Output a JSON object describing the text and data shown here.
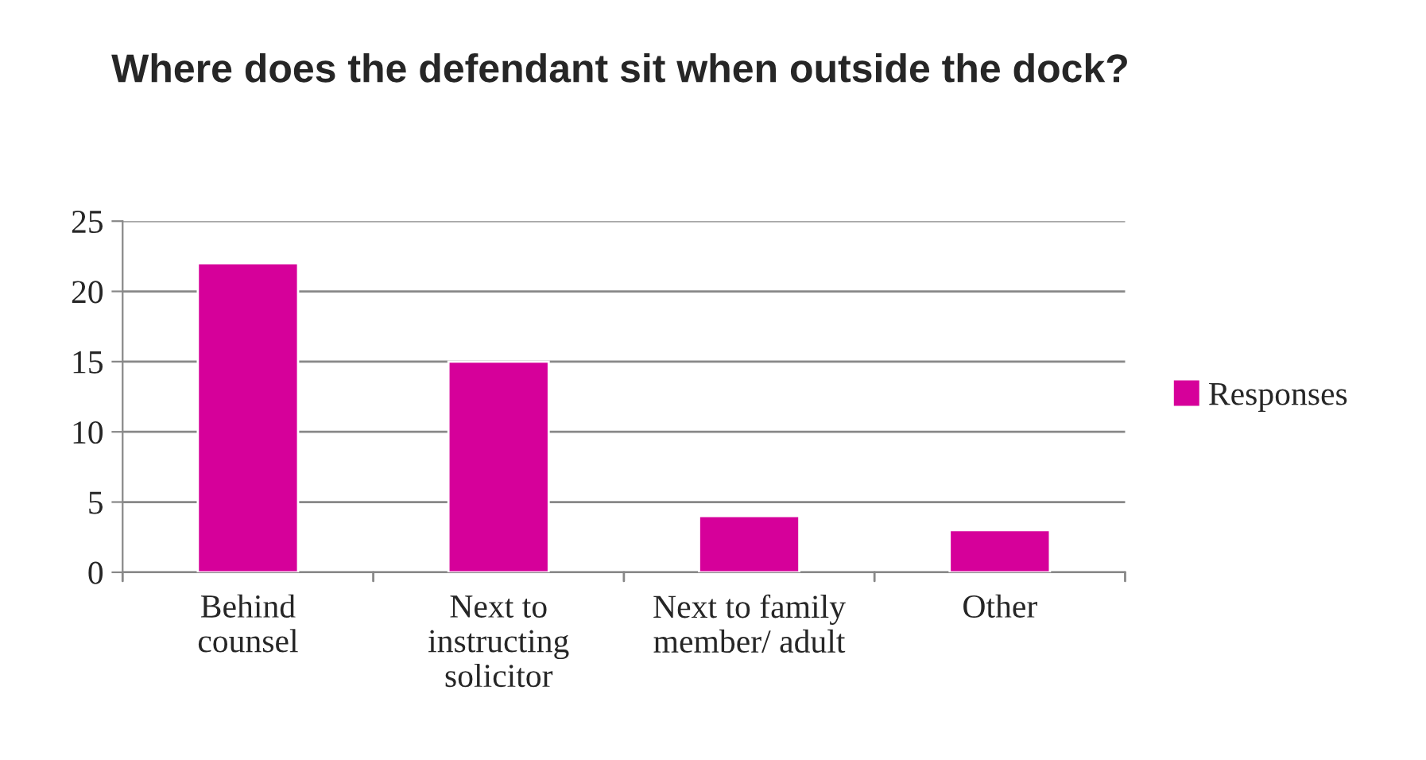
{
  "chart_data": {
    "type": "bar",
    "title": "Where does the defendant sit when outside the dock?",
    "categories": [
      "Behind\ncounsel",
      "Next to\ninstructing\nsolicitor",
      "Next to family\nmember/ adult",
      "Other"
    ],
    "series": [
      {
        "name": "Responses",
        "color": "#d6009a",
        "values": [
          22,
          15,
          4,
          3
        ]
      }
    ],
    "ylim": [
      0,
      25
    ],
    "yticks": [
      0,
      5,
      10,
      15,
      20,
      25
    ],
    "grid": "y",
    "legend": "right"
  }
}
